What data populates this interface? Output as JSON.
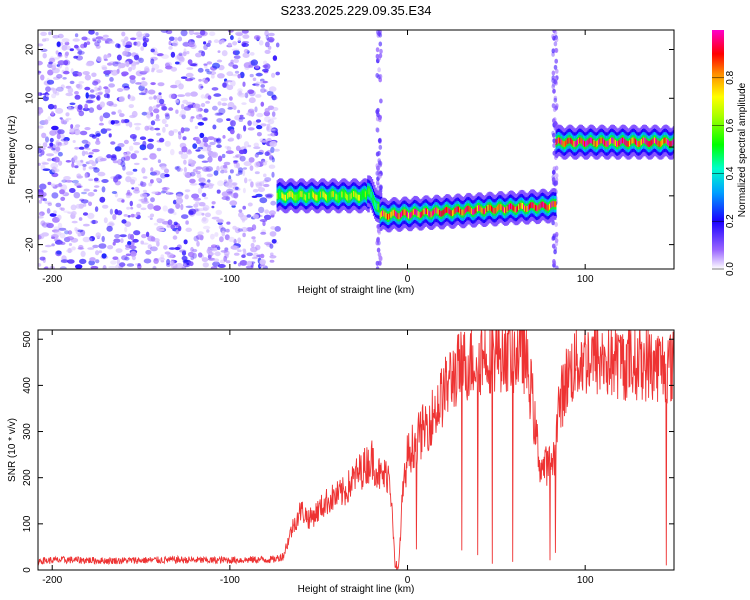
{
  "figure_title": "S233.2025.229.09.35.E34",
  "colors": {
    "snr_line": "#ee3333",
    "frame": "#000000",
    "noise_purple": "#7a33ff"
  },
  "chart_data": [
    {
      "type": "heatmap",
      "title": "S233.2025.229.09.35.E34",
      "xlabel": "Height of straight line (km)",
      "ylabel": "Frequency (Hz)",
      "xlim": [
        -208,
        150
      ],
      "ylim": [
        -25,
        24
      ],
      "xticks": [
        -200,
        -100,
        0,
        100
      ],
      "yticks": [
        -20,
        -10,
        0,
        10,
        20
      ],
      "colorbar": {
        "label": "Normalized spectral amplitude",
        "range": [
          0,
          1
        ],
        "ticks": [
          "0.0",
          "0.2",
          "0.4",
          "0.6",
          "0.8"
        ],
        "tick_values": [
          0,
          0.2,
          0.4,
          0.6,
          0.8
        ]
      },
      "noise_region_x": [
        -208,
        -73
      ],
      "signal_segments": [
        {
          "x": [
            -73,
            -22
          ],
          "freq": -10,
          "amplitude": 0.6
        },
        {
          "x": [
            -22,
            -15
          ],
          "freq": [
            -9,
            -13
          ],
          "amplitude": 0.4
        },
        {
          "x": [
            -15,
            83
          ],
          "freq": [
            -14,
            -12
          ],
          "amplitude": 0.9
        },
        {
          "x": [
            84,
            150
          ],
          "freq": 1,
          "amplitude": 0.95
        }
      ],
      "vertical_streaks_x": [
        -16,
        83
      ]
    },
    {
      "type": "line",
      "xlabel": "Height of straight line (km)",
      "ylabel": "SNR (10 * v/v)",
      "xlim": [
        -208,
        150
      ],
      "ylim": [
        0,
        520
      ],
      "xticks": [
        -200,
        -100,
        0,
        100
      ],
      "yticks": [
        0,
        100,
        200,
        300,
        400,
        500
      ],
      "series": [
        {
          "x": [
            -208,
            -190,
            -170,
            -150,
            -130,
            -110,
            -90,
            -75,
            -70,
            -65,
            -60,
            -55,
            -50,
            -45,
            -40,
            -35,
            -30,
            -25,
            -20,
            -15,
            -10,
            -7,
            -5,
            -3,
            0,
            5,
            10,
            15,
            20,
            25,
            30,
            35,
            40,
            45,
            50,
            55,
            60,
            65,
            70,
            72,
            75,
            80,
            83,
            85,
            90,
            95,
            100,
            110,
            120,
            130,
            140,
            150
          ],
          "values": [
            20,
            22,
            20,
            21,
            22,
            21,
            22,
            23,
            30,
            90,
            130,
            110,
            130,
            150,
            160,
            170,
            200,
            220,
            240,
            200,
            210,
            5,
            5,
            150,
            250,
            280,
            310,
            340,
            380,
            420,
            440,
            450,
            460,
            470,
            470,
            475,
            465,
            480,
            380,
            300,
            220,
            230,
            250,
            350,
            420,
            450,
            460,
            455,
            450,
            450,
            445,
            440
          ]
        }
      ]
    }
  ]
}
